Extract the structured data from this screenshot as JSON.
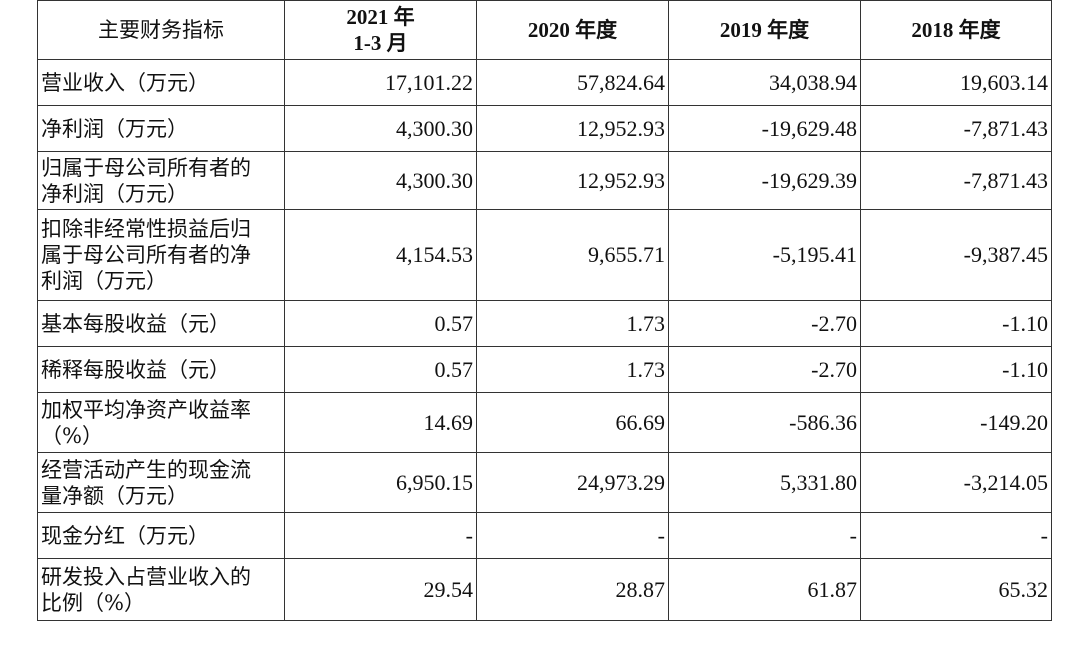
{
  "table": {
    "headers": [
      {
        "main": "主要财务指标"
      },
      {
        "year": "2021 年",
        "sub": "1-3 月"
      },
      {
        "year": "2020 年度"
      },
      {
        "year": "2019 年度"
      },
      {
        "year": "2018 年度"
      }
    ],
    "rows": [
      {
        "label": "营业收入（万元）",
        "values": [
          "17,101.22",
          "57,824.64",
          "34,038.94",
          "19,603.14"
        ]
      },
      {
        "label": "净利润（万元）",
        "values": [
          "4,300.30",
          "12,952.93",
          "-19,629.48",
          "-7,871.43"
        ]
      },
      {
        "label": "归属于母公司所有者的\n净利润（万元）",
        "values": [
          "4,300.30",
          "12,952.93",
          "-19,629.39",
          "-7,871.43"
        ]
      },
      {
        "label": "扣除非经常性损益后归\n属于母公司所有者的净\n利润（万元）",
        "values": [
          "4,154.53",
          "9,655.71",
          "-5,195.41",
          "-9,387.45"
        ]
      },
      {
        "label": "基本每股收益（元）",
        "values": [
          "0.57",
          "1.73",
          "-2.70",
          "-1.10"
        ]
      },
      {
        "label": "稀释每股收益（元）",
        "values": [
          "0.57",
          "1.73",
          "-2.70",
          "-1.10"
        ]
      },
      {
        "label": "加权平均净资产收益率\n（%）",
        "values": [
          "14.69",
          "66.69",
          "-586.36",
          "-149.20"
        ]
      },
      {
        "label": "经营活动产生的现金流\n量净额（万元）",
        "values": [
          "6,950.15",
          "24,973.29",
          "5,331.80",
          "-3,214.05"
        ]
      },
      {
        "label": "现金分红（万元）",
        "values": [
          "-",
          "-",
          "-",
          "-"
        ]
      },
      {
        "label": "研发投入占营业收入的\n比例（%）",
        "values": [
          "29.54",
          "28.87",
          "61.87",
          "65.32"
        ]
      }
    ]
  }
}
